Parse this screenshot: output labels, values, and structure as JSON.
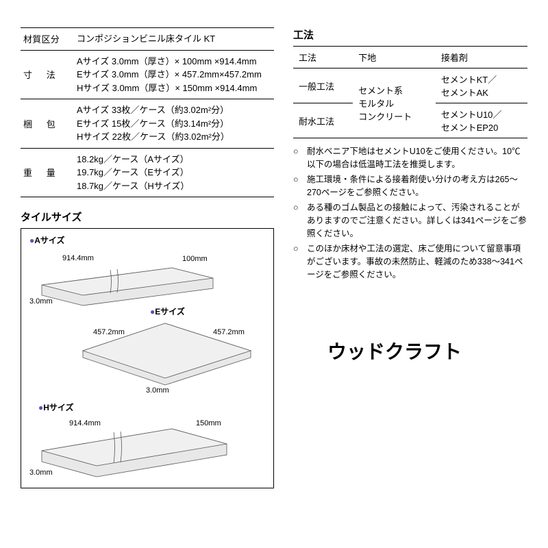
{
  "spec_table": {
    "rows": [
      {
        "label": "材質区分",
        "value": "コンポジションビニル床タイル KT"
      },
      {
        "label": "寸　法",
        "value": "Aサイズ 3.0mm（厚さ）× 100mm ×914.4mm\nEサイズ 3.0mm（厚さ）× 457.2mm×457.2mm\nHサイズ 3.0mm（厚さ）× 150mm ×914.4mm"
      },
      {
        "label": "梱　包",
        "value": "Aサイズ 33枚／ケース（約3.02m²分）\nEサイズ 15枚／ケース（約3.14m²分）\nHサイズ 22枚／ケース（約3.02m²分）"
      },
      {
        "label": "重　量",
        "value": "18.2kg／ケース（Aサイズ）\n19.7kg／ケース（Eサイズ）\n18.7kg／ケース（Hサイズ）"
      }
    ]
  },
  "tile_size": {
    "heading": "タイルサイズ",
    "tiles": {
      "a": {
        "label": "Aサイズ",
        "length": "914.4mm",
        "width": "100mm",
        "thick": "3.0mm"
      },
      "e": {
        "label": "Eサイズ",
        "length": "457.2mm",
        "width": "457.2mm",
        "thick": "3.0mm"
      },
      "h": {
        "label": "Hサイズ",
        "length": "914.4mm",
        "width": "150mm",
        "thick": "3.0mm"
      }
    }
  },
  "method": {
    "heading": "工法",
    "headers": [
      "工法",
      "下地",
      "接着剤"
    ],
    "rows": [
      {
        "name": "一般工法",
        "base": "セメント系\nモルタル\nコンクリート",
        "adhesive": "セメントKT／\nセメントAK"
      },
      {
        "name": "耐水工法",
        "base": "",
        "adhesive": "セメントU10／\nセメントEP20"
      }
    ]
  },
  "notes": [
    "耐水ベニア下地はセメントU10をご使用ください。10℃以下の場合は低温時工法を推奨します。",
    "施工環境・条件による接着剤使い分けの考え方は265〜270ページをご参照ください。",
    "ある種のゴム製品との接触によって、汚染されることがありますのでご注意ください。詳しくは341ページをご参照ください。",
    "このほか床材や工法の選定、床ご使用について留意事項がございます。事故の未然防止、軽減のため338〜341ページをご参照ください。"
  ],
  "brand": "ウッドクラフト",
  "colors": {
    "tile_fill": "#e8e8e8",
    "tile_stroke": "#555555",
    "bullet": "#5a4fb8"
  }
}
